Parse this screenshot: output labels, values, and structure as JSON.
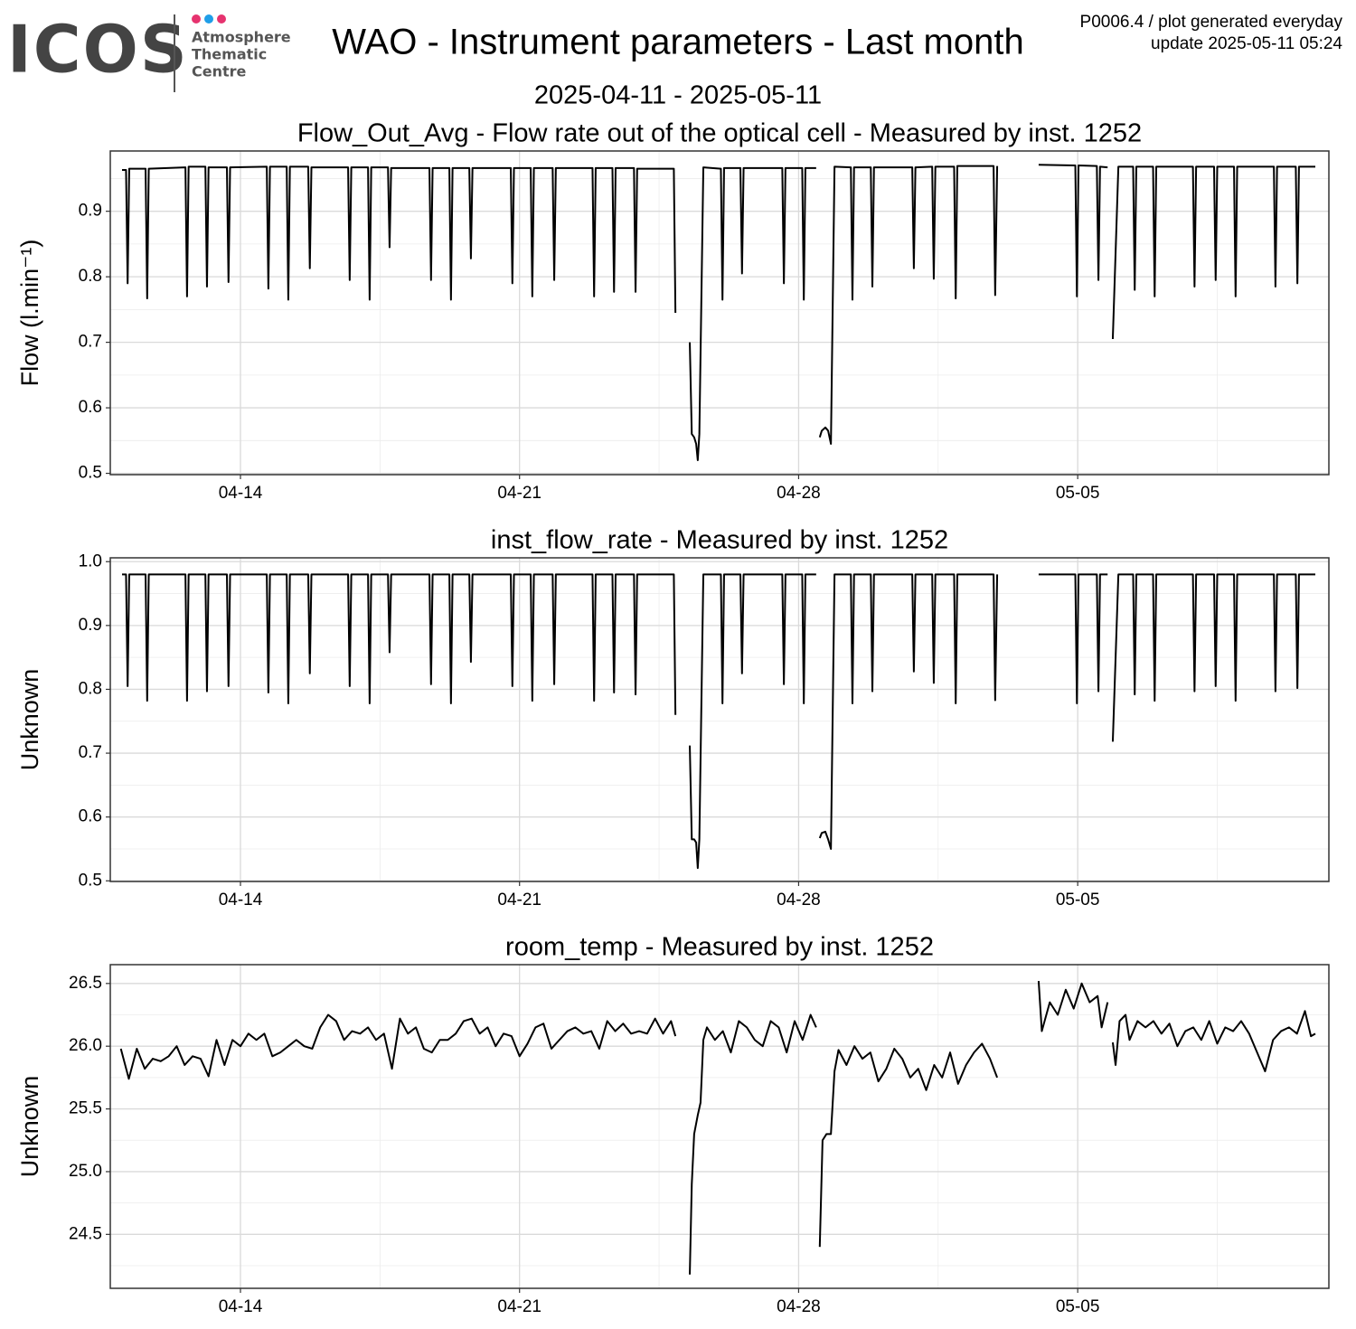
{
  "header": {
    "logo": "ICOS",
    "logo_lines": [
      "Atmosphere",
      "Thematic",
      "Centre"
    ],
    "title": "WAO - Instrument parameters - Last month",
    "subtitle": "2025-04-11 - 2025-05-11",
    "meta": [
      "P0006.4 / plot generated everyday",
      "update  2025-05-11 05:24"
    ]
  },
  "chart_data": [
    {
      "type": "line",
      "title": "Flow_Out_Avg - Flow rate out of the optical cell - Measured by inst. 1252",
      "y_label": "Flow (l.min⁻¹)",
      "x": [
        0.03,
        0.13,
        0.17,
        0.21,
        0.62,
        0.66,
        0.7,
        1.62,
        1.66,
        1.7,
        2.12,
        2.16,
        2.2,
        2.66,
        2.7,
        2.74,
        3.66,
        3.7,
        3.74,
        4.16,
        4.2,
        4.24,
        4.7,
        4.74,
        4.78,
        5.7,
        5.74,
        5.78,
        6.2,
        6.24,
        6.28,
        6.7,
        6.74,
        6.78,
        7.74,
        7.78,
        7.82,
        8.24,
        8.28,
        8.32,
        8.74,
        8.78,
        8.82,
        9.78,
        9.82,
        9.86,
        10.28,
        10.32,
        10.36,
        10.83,
        10.87,
        10.91,
        11.83,
        11.87,
        11.91,
        12.33,
        12.37,
        12.41,
        12.87,
        12.91,
        12.95,
        13.87,
        13.91,
        null,
        14.27,
        14.32,
        14.38,
        14.43,
        14.47,
        14.51,
        14.61,
        15.05,
        15.09,
        15.13,
        15.54,
        15.58,
        15.62,
        16.59,
        16.63,
        16.67,
        17.09,
        17.13,
        17.17,
        17.44,
        null,
        17.53,
        17.58,
        17.67,
        17.74,
        17.81,
        17.9,
        18.31,
        18.35,
        18.39,
        18.81,
        18.85,
        18.89,
        19.85,
        19.89,
        19.93,
        20.35,
        20.39,
        20.43,
        20.9,
        20.94,
        20.98,
        21.89,
        21.93,
        21.98,
        null,
        23.02,
        23.94,
        23.98,
        24.02,
        24.48,
        24.52,
        24.56,
        24.75,
        null,
        24.88,
        25.02,
        25.39,
        25.43,
        25.47,
        25.89,
        25.93,
        25.97,
        26.89,
        26.93,
        26.97,
        27.42,
        27.46,
        27.5,
        27.92,
        27.96,
        28.0,
        28.92,
        28.96,
        29.0,
        29.47,
        29.51,
        29.55,
        29.96
      ],
      "series": [
        {
          "color": "#000000",
          "values": [
            0.963,
            0.963,
            0.79,
            0.965,
            0.965,
            0.767,
            0.965,
            0.967,
            0.77,
            0.968,
            0.968,
            0.785,
            0.967,
            0.967,
            0.792,
            0.967,
            0.968,
            0.782,
            0.968,
            0.968,
            0.765,
            0.968,
            0.968,
            0.813,
            0.967,
            0.967,
            0.795,
            0.967,
            0.967,
            0.765,
            0.967,
            0.967,
            0.845,
            0.966,
            0.966,
            0.795,
            0.966,
            0.966,
            0.765,
            0.966,
            0.966,
            0.828,
            0.966,
            0.966,
            0.79,
            0.966,
            0.966,
            0.77,
            0.966,
            0.966,
            0.795,
            0.966,
            0.966,
            0.77,
            0.966,
            0.966,
            0.777,
            0.966,
            0.966,
            0.777,
            0.965,
            0.965,
            0.745,
            null,
            0.7,
            0.56,
            0.555,
            0.545,
            0.52,
            0.56,
            0.967,
            0.965,
            0.765,
            0.966,
            0.966,
            0.805,
            0.966,
            0.966,
            0.79,
            0.966,
            0.966,
            0.765,
            0.966,
            0.966,
            null,
            0.555,
            0.565,
            0.57,
            0.565,
            0.545,
            0.968,
            0.967,
            0.765,
            0.967,
            0.967,
            0.785,
            0.967,
            0.967,
            0.813,
            0.967,
            0.968,
            0.797,
            0.968,
            0.968,
            0.767,
            0.969,
            0.969,
            0.772,
            0.969,
            null,
            0.971,
            0.97,
            0.77,
            0.97,
            0.969,
            0.795,
            0.968,
            0.967,
            null,
            0.705,
            0.968,
            0.968,
            0.78,
            0.968,
            0.968,
            0.77,
            0.968,
            0.968,
            0.785,
            0.968,
            0.968,
            0.795,
            0.968,
            0.968,
            0.77,
            0.968,
            0.968,
            0.785,
            0.968,
            0.968,
            0.79,
            0.968,
            0.968
          ]
        }
      ],
      "xlim": [
        -0.265,
        30.3
      ],
      "ylim": [
        0.498,
        0.992
      ],
      "xticks": [
        {
          "value": 3,
          "label": "04-14"
        },
        {
          "value": 10,
          "label": "04-21"
        },
        {
          "value": 17,
          "label": "04-28"
        },
        {
          "value": 24,
          "label": "05-05"
        }
      ],
      "yticks": [
        0.5,
        0.6,
        0.7,
        0.8,
        0.9
      ],
      "grid": true
    },
    {
      "type": "line",
      "title": "inst_flow_rate - Measured by inst. 1252",
      "y_label": "Unknown",
      "x": [
        0.03,
        0.13,
        0.17,
        0.21,
        0.62,
        0.66,
        0.7,
        1.62,
        1.66,
        1.7,
        2.12,
        2.16,
        2.2,
        2.66,
        2.7,
        2.74,
        3.66,
        3.7,
        3.74,
        4.16,
        4.2,
        4.24,
        4.7,
        4.74,
        4.78,
        5.7,
        5.74,
        5.78,
        6.2,
        6.24,
        6.28,
        6.7,
        6.74,
        6.78,
        7.74,
        7.78,
        7.82,
        8.24,
        8.28,
        8.32,
        8.74,
        8.78,
        8.82,
        9.78,
        9.82,
        9.86,
        10.28,
        10.32,
        10.36,
        10.83,
        10.87,
        10.91,
        11.83,
        11.87,
        11.91,
        12.33,
        12.37,
        12.41,
        12.87,
        12.91,
        12.95,
        13.87,
        13.91,
        null,
        14.27,
        14.32,
        14.38,
        14.43,
        14.47,
        14.51,
        14.61,
        15.05,
        15.09,
        15.13,
        15.54,
        15.58,
        15.62,
        16.59,
        16.63,
        16.67,
        17.09,
        17.13,
        17.17,
        17.44,
        null,
        17.53,
        17.58,
        17.67,
        17.74,
        17.81,
        17.9,
        18.31,
        18.35,
        18.39,
        18.81,
        18.85,
        18.89,
        19.85,
        19.89,
        19.93,
        20.35,
        20.39,
        20.43,
        20.9,
        20.94,
        20.98,
        21.89,
        21.93,
        21.98,
        null,
        23.02,
        23.94,
        23.98,
        24.02,
        24.48,
        24.52,
        24.56,
        24.75,
        null,
        24.88,
        25.02,
        25.39,
        25.43,
        25.47,
        25.89,
        25.93,
        25.97,
        26.89,
        26.93,
        26.97,
        27.42,
        27.46,
        27.5,
        27.92,
        27.96,
        28.0,
        28.92,
        28.96,
        29.0,
        29.47,
        29.51,
        29.55,
        29.96
      ],
      "series": [
        {
          "color": "#000000",
          "values": [
            0.98,
            0.98,
            0.805,
            0.98,
            0.98,
            0.782,
            0.98,
            0.98,
            0.782,
            0.98,
            0.98,
            0.797,
            0.98,
            0.98,
            0.805,
            0.98,
            0.98,
            0.795,
            0.98,
            0.98,
            0.778,
            0.98,
            0.98,
            0.825,
            0.98,
            0.98,
            0.805,
            0.98,
            0.98,
            0.778,
            0.98,
            0.98,
            0.858,
            0.98,
            0.98,
            0.808,
            0.98,
            0.98,
            0.778,
            0.98,
            0.98,
            0.843,
            0.98,
            0.98,
            0.805,
            0.98,
            0.98,
            0.782,
            0.98,
            0.98,
            0.808,
            0.98,
            0.98,
            0.782,
            0.98,
            0.98,
            0.795,
            0.98,
            0.98,
            0.792,
            0.98,
            0.98,
            0.76,
            null,
            0.712,
            0.565,
            0.565,
            0.56,
            0.52,
            0.565,
            0.98,
            0.98,
            0.778,
            0.98,
            0.98,
            0.825,
            0.98,
            0.98,
            0.808,
            0.98,
            0.98,
            0.778,
            0.98,
            0.98,
            null,
            0.567,
            0.575,
            0.577,
            0.565,
            0.55,
            0.98,
            0.98,
            0.778,
            0.98,
            0.98,
            0.797,
            0.98,
            0.98,
            0.828,
            0.98,
            0.98,
            0.81,
            0.98,
            0.98,
            0.778,
            0.98,
            0.98,
            0.783,
            0.98,
            null,
            0.98,
            0.98,
            0.778,
            0.98,
            0.98,
            0.797,
            0.98,
            0.98,
            null,
            0.718,
            0.98,
            0.98,
            0.792,
            0.98,
            0.98,
            0.782,
            0.98,
            0.98,
            0.797,
            0.98,
            0.98,
            0.805,
            0.98,
            0.98,
            0.782,
            0.98,
            0.98,
            0.797,
            0.98,
            0.98,
            0.802,
            0.98,
            0.98
          ]
        }
      ],
      "xlim": [
        -0.265,
        30.3
      ],
      "ylim": [
        0.499,
        1.006
      ],
      "xticks": [
        {
          "value": 3,
          "label": "04-14"
        },
        {
          "value": 10,
          "label": "04-21"
        },
        {
          "value": 17,
          "label": "04-28"
        },
        {
          "value": 24,
          "label": "05-05"
        }
      ],
      "yticks": [
        0.5,
        0.6,
        0.7,
        0.8,
        0.9,
        {
          "value": 1,
          "label": "1.0"
        }
      ],
      "grid": true
    },
    {
      "type": "line",
      "title": "room_temp - Measured by inst. 1252",
      "y_label": "Unknown",
      "x": [
        0,
        0.2,
        0.4,
        0.6,
        0.8,
        1,
        1.2,
        1.4,
        1.6,
        1.8,
        2,
        2.2,
        2.4,
        2.6,
        2.8,
        3,
        3.2,
        3.4,
        3.6,
        3.8,
        4,
        4.2,
        4.4,
        4.6,
        4.8,
        5,
        5.2,
        5.4,
        5.6,
        5.8,
        6,
        6.2,
        6.4,
        6.6,
        6.8,
        7,
        7.2,
        7.4,
        7.6,
        7.8,
        8,
        8.2,
        8.4,
        8.6,
        8.8,
        9,
        9.2,
        9.4,
        9.6,
        9.8,
        10,
        10.2,
        10.4,
        10.6,
        10.8,
        11,
        11.2,
        11.4,
        11.6,
        11.8,
        12,
        12.2,
        12.4,
        12.6,
        12.8,
        13,
        13.2,
        13.4,
        13.6,
        13.8,
        13.91,
        null,
        14.27,
        14.32,
        14.38,
        14.47,
        14.54,
        14.61,
        14.7,
        14.9,
        15.1,
        15.3,
        15.5,
        15.7,
        15.9,
        16.1,
        16.3,
        16.5,
        16.7,
        16.9,
        17.1,
        17.3,
        17.44,
        null,
        17.53,
        17.6,
        17.7,
        17.81,
        17.9,
        18,
        18.2,
        18.4,
        18.6,
        18.8,
        19,
        19.2,
        19.4,
        19.6,
        19.8,
        20,
        20.2,
        20.4,
        20.6,
        20.8,
        21,
        21.2,
        21.4,
        21.6,
        21.8,
        21.98,
        null,
        23.02,
        23.1,
        23.3,
        23.5,
        23.7,
        23.9,
        24.1,
        24.3,
        24.5,
        24.6,
        24.75,
        null,
        24.88,
        24.95,
        25.05,
        25.2,
        25.3,
        25.5,
        25.7,
        25.9,
        26.1,
        26.3,
        26.5,
        26.7,
        26.9,
        27.1,
        27.3,
        27.5,
        27.7,
        27.9,
        28.1,
        28.3,
        28.5,
        28.7,
        28.9,
        29.1,
        29.3,
        29.5,
        29.7,
        29.85,
        29.96
      ],
      "series": [
        {
          "color": "#000000",
          "values": [
            25.98,
            25.74,
            25.98,
            25.82,
            25.9,
            25.88,
            25.92,
            26.0,
            25.85,
            25.92,
            25.9,
            25.76,
            26.05,
            25.85,
            26.05,
            26.0,
            26.1,
            26.05,
            26.1,
            25.92,
            25.95,
            26.0,
            26.05,
            26.0,
            25.98,
            26.15,
            26.25,
            26.2,
            26.05,
            26.12,
            26.1,
            26.15,
            26.05,
            26.1,
            25.82,
            26.22,
            26.1,
            26.15,
            25.98,
            25.95,
            26.05,
            26.05,
            26.1,
            26.2,
            26.22,
            26.1,
            26.15,
            26.0,
            26.1,
            26.08,
            25.92,
            26.02,
            26.15,
            26.18,
            25.98,
            26.05,
            26.12,
            26.15,
            26.1,
            26.12,
            25.98,
            26.2,
            26.12,
            26.18,
            26.1,
            26.12,
            26.1,
            26.22,
            26.1,
            26.2,
            26.08,
            null,
            24.18,
            24.9,
            25.3,
            25.45,
            25.55,
            26.05,
            26.15,
            26.05,
            26.12,
            25.95,
            26.2,
            26.15,
            26.05,
            26.0,
            26.2,
            26.15,
            25.95,
            26.2,
            26.05,
            26.25,
            26.15,
            null,
            24.4,
            25.25,
            25.3,
            25.3,
            25.8,
            25.97,
            25.85,
            26.0,
            25.9,
            25.95,
            25.72,
            25.82,
            25.98,
            25.9,
            25.75,
            25.82,
            25.65,
            25.85,
            25.75,
            25.95,
            25.7,
            25.85,
            25.95,
            26.02,
            25.9,
            25.75,
            null,
            26.52,
            26.12,
            26.35,
            26.25,
            26.45,
            26.3,
            26.5,
            26.35,
            26.4,
            26.15,
            26.35,
            null,
            26.03,
            25.85,
            26.2,
            26.25,
            26.05,
            26.2,
            26.15,
            26.2,
            26.1,
            26.18,
            26.0,
            26.12,
            26.15,
            26.05,
            26.2,
            26.02,
            26.15,
            26.12,
            26.2,
            26.1,
            25.95,
            25.8,
            26.05,
            26.12,
            26.15,
            26.1,
            26.28,
            26.08,
            26.1
          ]
        }
      ],
      "xlim": [
        -0.265,
        30.3
      ],
      "ylim": [
        24.07,
        26.65
      ],
      "xticks": [
        {
          "value": 3,
          "label": "04-14"
        },
        {
          "value": 10,
          "label": "04-21"
        },
        {
          "value": 17,
          "label": "04-28"
        },
        {
          "value": 24,
          "label": "05-05"
        }
      ],
      "yticks": [
        24.5,
        {
          "value": 25,
          "label": "25.0"
        },
        25.5,
        {
          "value": 26,
          "label": "26.0"
        },
        26.5
      ],
      "grid": true
    }
  ]
}
